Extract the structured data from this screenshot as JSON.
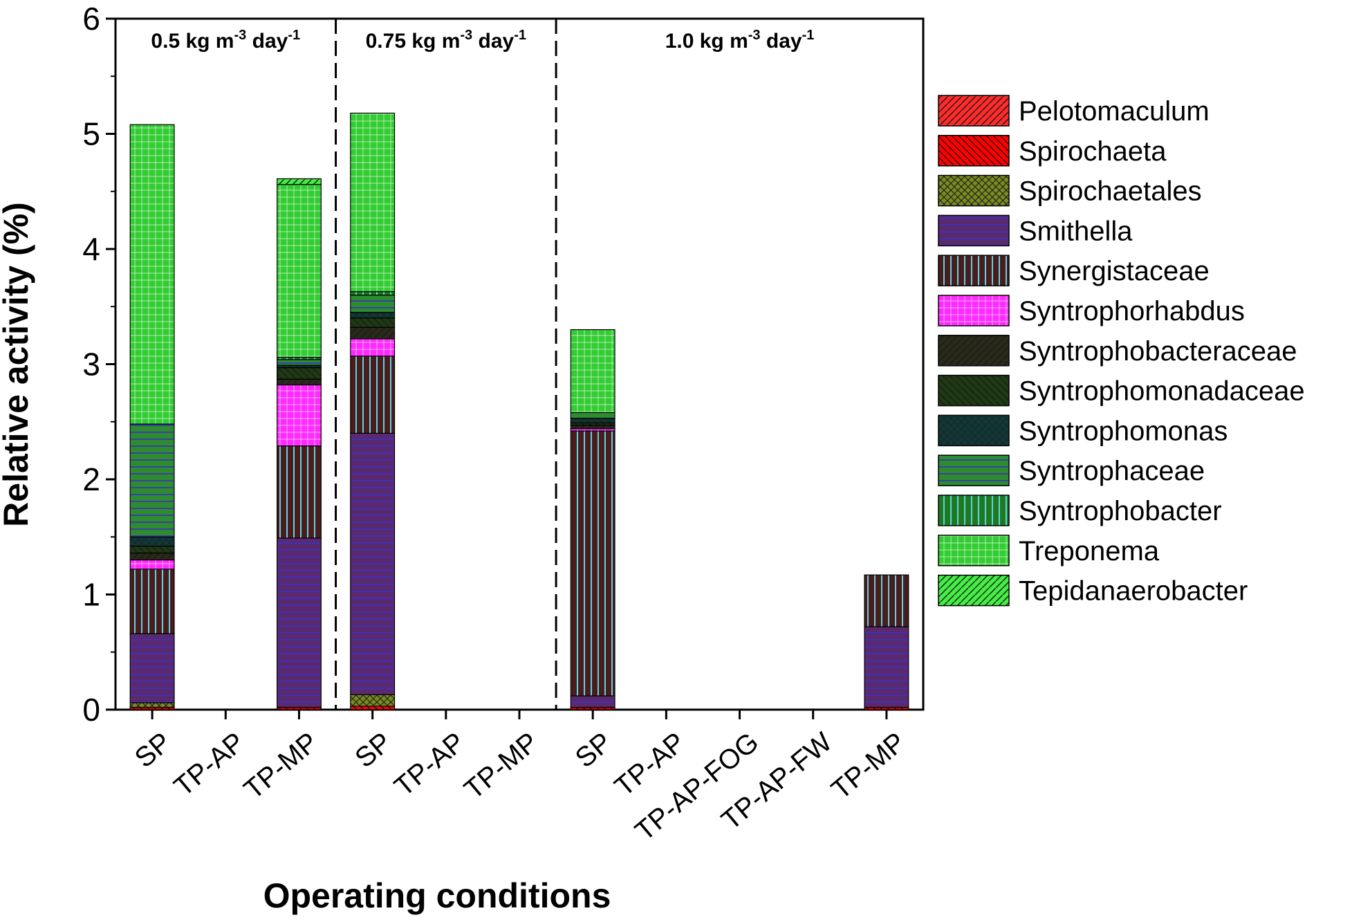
{
  "chart_data": {
    "type": "bar",
    "stacked": true,
    "title": "",
    "xlabel": "Operating conditions",
    "ylabel": "Relative activity (%)",
    "ylim": [
      0,
      6
    ],
    "yticks": [
      "0",
      "1",
      "2",
      "3",
      "4",
      "5",
      "6"
    ],
    "groups": [
      {
        "base": "0.5 kg m",
        "exp1": "-3",
        "mid": " day",
        "exp2": "-1",
        "count": 3
      },
      {
        "base": "0.75 kg m",
        "exp1": "-3",
        "mid": " day",
        "exp2": "-1",
        "count": 3
      },
      {
        "base": "1.0 kg m",
        "exp1": "-3",
        "mid": " day",
        "exp2": "-1",
        "count": 5
      }
    ],
    "categories": [
      "SP",
      "TP-AP",
      "TP-MP",
      "SP",
      "TP-AP",
      "TP-MP",
      "SP",
      "TP-AP",
      "TP-AP-FOG",
      "TP-AP-FW",
      "TP-MP"
    ],
    "series": [
      {
        "name": "Pelotomaculum",
        "color": "#ff2a2a",
        "pattern": "hatch-fwd",
        "values": [
          0,
          0,
          0,
          0,
          0,
          0,
          0,
          0,
          0,
          0,
          0
        ]
      },
      {
        "name": "Spirochaeta",
        "color": "#ff0000",
        "pattern": "hatch-back",
        "values": [
          0.02,
          0,
          0.02,
          0.03,
          0,
          0,
          0.02,
          0,
          0,
          0,
          0.02
        ]
      },
      {
        "name": "Spirochaetales",
        "color": "#7a8c1e",
        "pattern": "crosshatch",
        "values": [
          0.04,
          0,
          0,
          0.1,
          0,
          0,
          0,
          0,
          0,
          0,
          0
        ]
      },
      {
        "name": "Smithella",
        "color": "#5a2a6e",
        "pattern": "hlines",
        "values": [
          0.6,
          0,
          1.47,
          2.27,
          0,
          0,
          0.1,
          0,
          0,
          0,
          0.7
        ]
      },
      {
        "name": "Synergistaceae",
        "color": "#4a1c1c",
        "pattern": "vlines",
        "values": [
          0.56,
          0,
          0.8,
          0.67,
          0,
          0,
          2.3,
          0,
          0,
          0,
          0.45
        ]
      },
      {
        "name": "Syntrophorhabdus",
        "color": "#ff2aff",
        "pattern": "grid",
        "values": [
          0.08,
          0,
          0.53,
          0.15,
          0,
          0,
          0.02,
          0,
          0,
          0,
          0
        ]
      },
      {
        "name": "Syntrophobacteraceae",
        "color": "#2a2a1a",
        "pattern": "hatch-fwd",
        "values": [
          0.06,
          0,
          0.05,
          0.1,
          0,
          0,
          0.03,
          0,
          0,
          0,
          0
        ]
      },
      {
        "name": "Syntrophomonadaceae",
        "color": "#1e3a12",
        "pattern": "hatch-back",
        "values": [
          0.06,
          0,
          0.1,
          0.08,
          0,
          0,
          0.02,
          0,
          0,
          0,
          0
        ]
      },
      {
        "name": "Syntrophomonas",
        "color": "#0b3a3a",
        "pattern": "crosshatch",
        "values": [
          0.08,
          0,
          0.02,
          0.05,
          0,
          0,
          0.04,
          0,
          0,
          0,
          0
        ]
      },
      {
        "name": "Syntrophaceae",
        "color": "#2e8b2e",
        "pattern": "hlines",
        "values": [
          0.98,
          0,
          0.05,
          0.15,
          0,
          0,
          0.05,
          0,
          0,
          0,
          0
        ]
      },
      {
        "name": "Syntrophobacter",
        "color": "#1f7a1f",
        "pattern": "vlines",
        "values": [
          0,
          0,
          0.02,
          0.03,
          0,
          0,
          0,
          0,
          0,
          0,
          0
        ]
      },
      {
        "name": "Treponema",
        "color": "#33cc33",
        "pattern": "grid",
        "values": [
          2.6,
          0,
          1.5,
          1.55,
          0,
          0,
          0.72,
          0,
          0,
          0,
          0
        ]
      },
      {
        "name": "Tepidanaerobacter",
        "color": "#44ee44",
        "pattern": "hatch-fwd",
        "values": [
          0,
          0,
          0.05,
          0,
          0,
          0,
          0,
          0,
          0,
          0,
          0
        ]
      }
    ]
  }
}
